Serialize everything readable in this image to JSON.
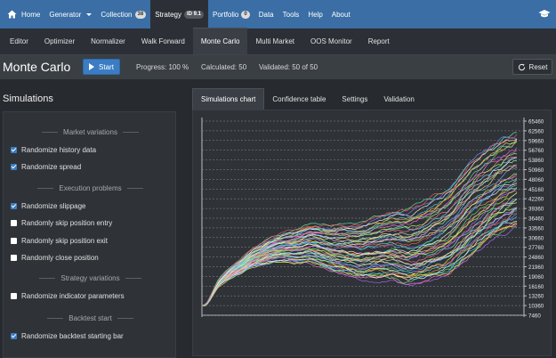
{
  "nav": {
    "items": [
      {
        "label": "Home",
        "name": "nav-home"
      },
      {
        "label": "Generator",
        "name": "nav-generator",
        "caret": true
      },
      {
        "label": "Collection",
        "name": "nav-collection",
        "badge": "38"
      },
      {
        "label": "Strategy",
        "name": "nav-strategy",
        "badge": "ID 9.1",
        "active": true
      },
      {
        "label": "Portfolio",
        "name": "nav-portfolio",
        "badge": "0"
      },
      {
        "label": "Data",
        "name": "nav-data"
      },
      {
        "label": "Tools",
        "name": "nav-tools"
      },
      {
        "label": "Help",
        "name": "nav-help"
      },
      {
        "label": "About",
        "name": "nav-about"
      }
    ]
  },
  "subtabs": [
    {
      "label": "Editor"
    },
    {
      "label": "Optimizer"
    },
    {
      "label": "Normalizer"
    },
    {
      "label": "Walk Forward"
    },
    {
      "label": "Monte Carlo",
      "active": true
    },
    {
      "label": "Multi Market"
    },
    {
      "label": "OOS Monitor"
    },
    {
      "label": "Report"
    }
  ],
  "titlebar": {
    "title": "Monte Carlo",
    "start_label": "Start",
    "progress": "Progress: 100 %",
    "calculated": "Calculated: 50",
    "validated": "Validated: 50 of 50",
    "reset_label": "Reset"
  },
  "simulations": {
    "header": "Simulations",
    "sections": [
      {
        "title": "Market variations",
        "options": [
          {
            "label": "Randomize history data",
            "checked": true
          },
          {
            "label": "Randomize spread",
            "checked": true
          }
        ]
      },
      {
        "title": "Execution problems",
        "options": [
          {
            "label": "Randomize slippage",
            "checked": true
          },
          {
            "label": "Randomly skip position entry",
            "checked": false
          },
          {
            "label": "Randomly skip position exit",
            "checked": false
          },
          {
            "label": "Randomly close position",
            "checked": false
          }
        ]
      },
      {
        "title": "Strategy variations",
        "options": [
          {
            "label": "Randomize indicator parameters",
            "checked": false
          }
        ]
      },
      {
        "title": "Backtest start",
        "options": [
          {
            "label": "Randomize backtest starting bar",
            "checked": true
          }
        ]
      }
    ]
  },
  "chart_tabs": [
    {
      "label": "Simulations chart",
      "active": true
    },
    {
      "label": "Confidence table"
    },
    {
      "label": "Settings"
    },
    {
      "label": "Validation"
    }
  ],
  "chart_data": {
    "type": "line",
    "y_ticks": [
      "65460",
      "62560",
      "59660",
      "56760",
      "53860",
      "50960",
      "48060",
      "45160",
      "42260",
      "39360",
      "36460",
      "33560",
      "30660",
      "27760",
      "24860",
      "21960",
      "19060",
      "16160",
      "13260",
      "10360",
      "7460"
    ],
    "ylim": [
      7460,
      65460
    ],
    "n_series": 50,
    "n_points": 120,
    "median_path": [
      10360,
      10400,
      11000,
      12200,
      13800,
      15200,
      16600,
      17500,
      18200,
      18900,
      19500,
      20100,
      20600,
      21100,
      21500,
      21900,
      22500,
      23200,
      23800,
      24300,
      24600,
      24900,
      25200,
      25500,
      25900,
      26200,
      26500,
      26700,
      26900,
      27100,
      27200,
      27300,
      27400,
      27500,
      27500,
      27600,
      27700,
      27800,
      28000,
      28200,
      28400,
      28400,
      28300,
      28200,
      28000,
      27700,
      27500,
      27300,
      27100,
      26900,
      26800,
      26700,
      26600,
      26500,
      26400,
      26300,
      26200,
      26100,
      26000,
      25900,
      25900,
      26000,
      26100,
      26300,
      26400,
      26500,
      26600,
      26700,
      26800,
      26900,
      27000,
      27100,
      27100,
      27000,
      26900,
      26800,
      26700,
      26600,
      26500,
      26600,
      26800,
      27000,
      27300,
      27600,
      27900,
      28200,
      28500,
      28800,
      29100,
      29400,
      29700,
      30000,
      30400,
      30900,
      31500,
      32200,
      33000,
      33800,
      34600,
      35400,
      36200,
      37000,
      37800,
      38500,
      39200,
      39800,
      40400,
      41000,
      41600,
      42200,
      42800,
      43300,
      43800,
      44200,
      44600,
      45000,
      45400,
      45800,
      46200,
      46500
    ],
    "spread_top": 16000,
    "spread_bottom": 13000,
    "grid": true
  },
  "colors": {
    "nav_bg": "#3a6ea5",
    "accent": "#3a7dc4",
    "panel": "#2f3338"
  }
}
